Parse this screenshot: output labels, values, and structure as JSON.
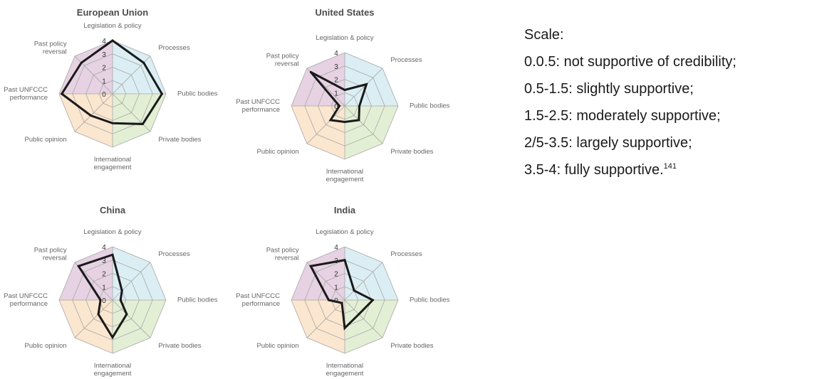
{
  "chart_data": [
    {
      "type": "radar",
      "title": "European Union",
      "axes": [
        "Legislation & policy",
        "Processes",
        "Public bodies",
        "Private bodies",
        "International engagement",
        "Public opinion",
        "Past UNFCCC performance",
        "Past policy reversal"
      ],
      "ticks": [
        "0",
        "1",
        "2",
        "3",
        "4"
      ],
      "rlim": [
        0,
        4
      ],
      "values": [
        4,
        3.3,
        3.7,
        3.2,
        2.2,
        2.3,
        3.8,
        3.3
      ]
    },
    {
      "type": "radar",
      "title": "United States",
      "axes": [
        "Legislation & policy",
        "Processes",
        "Public bodies",
        "Private bodies",
        "International engagement",
        "Public opinion",
        "Past UNFCCC performance",
        "Past policy reversal"
      ],
      "ticks": [
        "0",
        "1",
        "2",
        "3",
        "4"
      ],
      "rlim": [
        0,
        4
      ],
      "values": [
        1.2,
        2.3,
        1.1,
        1.5,
        1.2,
        1.5,
        0.4,
        3.6
      ]
    },
    {
      "type": "radar",
      "title": "China",
      "axes": [
        "Legislation & policy",
        "Processes",
        "Public bodies",
        "Private bodies",
        "International engagement",
        "Public opinion",
        "Past UNFCCC performance",
        "Past policy reversal"
      ],
      "ticks": [
        "0",
        "1",
        "2",
        "3",
        "4"
      ],
      "rlim": [
        0,
        4
      ],
      "values": [
        3.4,
        1.0,
        0.6,
        1.5,
        2.8,
        1.5,
        0.9,
        3.6
      ]
    },
    {
      "type": "radar",
      "title": "India",
      "axes": [
        "Legislation & policy",
        "Processes",
        "Public bodies",
        "Private bodies",
        "International engagement",
        "Public opinion",
        "Past UNFCCC performance",
        "Past policy reversal"
      ],
      "ticks": [
        "0",
        "1",
        "2",
        "3",
        "4"
      ],
      "rlim": [
        0,
        4
      ],
      "values": [
        3.0,
        1.0,
        2.1,
        1.5,
        2.1,
        0.3,
        1.2,
        3.6
      ]
    }
  ],
  "axis_label_lines": [
    [
      "Legislation & policy"
    ],
    [
      "Processes"
    ],
    [
      "Public bodies"
    ],
    [
      "Private bodies"
    ],
    [
      "International",
      "engagement"
    ],
    [
      "Public opinion"
    ],
    [
      "Past UNFCCC",
      "performance"
    ],
    [
      "Past policy",
      "reversal"
    ]
  ],
  "sector_colors": [
    "#dbeef4",
    "#e3efd4",
    "#fbe6cf",
    "#e6d2e2"
  ],
  "line_color": "#1a1a1a",
  "grid_color": "#a8a8a8",
  "scale": {
    "heading": "Scale:",
    "items": [
      "0.0.5: not supportive of credibility;",
      "0.5-1.5: slightly supportive;",
      "1.5-2.5: moderately supportive;",
      "2/5-3.5: largely supportive;",
      "3.5-4: fully supportive."
    ],
    "footnote": "141"
  }
}
